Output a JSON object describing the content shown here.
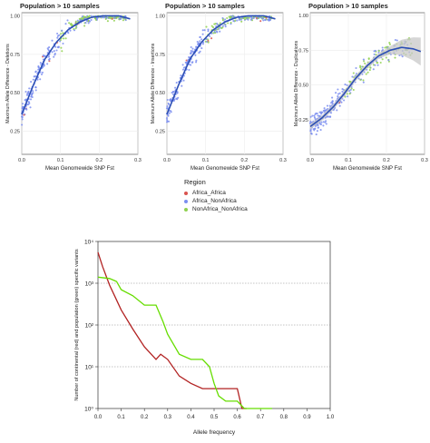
{
  "chart_data": [
    {
      "type": "scatter",
      "title": "Population > 10 samples",
      "xlabel": "Mean Genomewide SNP Fst",
      "ylabel": "Maximum Allele Difference - Deletions",
      "xlim": [
        0,
        0.3
      ],
      "ylim": [
        0.1,
        1.02
      ],
      "xticks": [
        "0.0",
        "0.1",
        "0.2",
        "0.3"
      ],
      "yticks": [
        "0.25",
        "0.50",
        "0.75",
        "1.00"
      ],
      "grid": true,
      "shape": "sat",
      "trend": [
        [
          0.0,
          0.36
        ],
        [
          0.03,
          0.55
        ],
        [
          0.06,
          0.72
        ],
        [
          0.09,
          0.83
        ],
        [
          0.12,
          0.91
        ],
        [
          0.15,
          0.96
        ],
        [
          0.18,
          0.99
        ],
        [
          0.21,
          1.0
        ],
        [
          0.25,
          1.0
        ],
        [
          0.28,
          0.98
        ]
      ]
    },
    {
      "type": "scatter",
      "title": "Population > 10 samples",
      "xlabel": "Mean Genomewide SNP Fst",
      "ylabel": "Maximum Allele Difference - Insertions",
      "xlim": [
        0,
        0.3
      ],
      "ylim": [
        0.1,
        1.02
      ],
      "xticks": [
        "0.0",
        "0.1",
        "0.2",
        "0.3"
      ],
      "yticks": [
        "0.25",
        "0.50",
        "0.75",
        "1.00"
      ],
      "grid": true,
      "shape": "sat",
      "trend": [
        [
          0.0,
          0.36
        ],
        [
          0.03,
          0.55
        ],
        [
          0.06,
          0.72
        ],
        [
          0.09,
          0.83
        ],
        [
          0.12,
          0.91
        ],
        [
          0.15,
          0.96
        ],
        [
          0.18,
          0.99
        ],
        [
          0.21,
          1.0
        ],
        [
          0.25,
          1.0
        ],
        [
          0.28,
          0.98
        ]
      ]
    },
    {
      "type": "scatter",
      "title": "Population > 10 samples",
      "xlabel": "Mean Genomewide SNP Fst",
      "ylabel": "Maximum Allele Difference - Duplications",
      "xlim": [
        0,
        0.3
      ],
      "ylim": [
        0.0,
        1.02
      ],
      "xticks": [
        "0.0",
        "0.1",
        "0.2",
        "0.3"
      ],
      "yticks": [
        "0.25",
        "0.50",
        "0.75",
        "1.00"
      ],
      "grid": true,
      "shape": "dup",
      "trend": [
        [
          0.0,
          0.2
        ],
        [
          0.03,
          0.26
        ],
        [
          0.06,
          0.34
        ],
        [
          0.09,
          0.44
        ],
        [
          0.12,
          0.55
        ],
        [
          0.15,
          0.64
        ],
        [
          0.18,
          0.71
        ],
        [
          0.21,
          0.75
        ],
        [
          0.24,
          0.77
        ],
        [
          0.27,
          0.76
        ],
        [
          0.29,
          0.74
        ]
      ]
    },
    {
      "type": "line",
      "xlabel": "Allele frequency",
      "ylabel": "Number of continental (red) and population (green) specific variants",
      "log_y": true,
      "xlim": [
        0,
        1
      ],
      "ylim": [
        1,
        10000
      ],
      "xticks": [
        "0.0",
        "0.1",
        "0.2",
        "0.3",
        "0.4",
        "0.5",
        "0.6",
        "0.7",
        "0.8",
        "0.9",
        "1.0"
      ],
      "yticks": [
        "10⁰",
        "10¹",
        "10²",
        "10³",
        "10⁴"
      ],
      "grid": "horizontal-dotted",
      "series": [
        {
          "color": "#b22222",
          "points": [
            [
              0.0,
              5500
            ],
            [
              0.02,
              2500
            ],
            [
              0.05,
              900
            ],
            [
              0.1,
              230
            ],
            [
              0.15,
              80
            ],
            [
              0.2,
              30
            ],
            [
              0.25,
              15
            ],
            [
              0.27,
              20
            ],
            [
              0.3,
              15
            ],
            [
              0.35,
              6
            ],
            [
              0.4,
              4
            ],
            [
              0.45,
              3
            ],
            [
              0.5,
              3
            ],
            [
              0.55,
              3
            ],
            [
              0.6,
              3
            ],
            [
              0.62,
              1
            ],
            [
              0.64,
              1
            ]
          ]
        },
        {
          "color": "#66dd00",
          "points": [
            [
              0.0,
              1400
            ],
            [
              0.05,
              1300
            ],
            [
              0.08,
              1100
            ],
            [
              0.1,
              700
            ],
            [
              0.15,
              500
            ],
            [
              0.2,
              300
            ],
            [
              0.25,
              300
            ],
            [
              0.28,
              120
            ],
            [
              0.3,
              60
            ],
            [
              0.35,
              20
            ],
            [
              0.4,
              15
            ],
            [
              0.45,
              15
            ],
            [
              0.48,
              10
            ],
            [
              0.5,
              4
            ],
            [
              0.52,
              2
            ],
            [
              0.55,
              1.5
            ],
            [
              0.58,
              1.5
            ],
            [
              0.6,
              1.5
            ],
            [
              0.63,
              1
            ],
            [
              0.7,
              1
            ],
            [
              0.75,
              1
            ]
          ]
        }
      ]
    }
  ],
  "legend": {
    "title": "Region",
    "items": [
      {
        "label": "Africa_Africa",
        "color": "#d9534f"
      },
      {
        "label": "Africa_NonAfrica",
        "color": "#7b8ef0"
      },
      {
        "label": "NonAfrica_NonAfrica",
        "color": "#8fd14f"
      }
    ]
  },
  "colors": {
    "trend": "#2c4fb5",
    "band": "#c8c8c8",
    "panel_bg": "#ffffff",
    "grid": "#ececec"
  }
}
